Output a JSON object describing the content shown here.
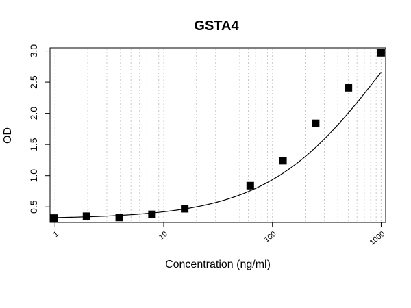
{
  "chart_data": {
    "type": "scatter",
    "title": "GSTA4",
    "xlabel": "Concentration (ng/ml)",
    "ylabel": "OD",
    "x_scale": "log",
    "xlim": [
      0.9,
      1100
    ],
    "ylim": [
      0.25,
      3.05
    ],
    "x_ticks": [
      "1",
      "10",
      "100",
      "1000"
    ],
    "y_ticks": [
      "0.5",
      "1.0",
      "1.5",
      "2.0",
      "2.5",
      "3.0"
    ],
    "grid": "vertical minor log gridlines (dotted)",
    "series": [
      {
        "marker": "filled square",
        "points": [
          {
            "x": 0.98,
            "y": 0.32
          },
          {
            "x": 1.95,
            "y": 0.35
          },
          {
            "x": 3.9,
            "y": 0.33
          },
          {
            "x": 7.8,
            "y": 0.38
          },
          {
            "x": 15.6,
            "y": 0.47
          },
          {
            "x": 62.5,
            "y": 0.84
          },
          {
            "x": 125,
            "y": 1.24
          },
          {
            "x": 250,
            "y": 1.84
          },
          {
            "x": 500,
            "y": 2.41
          },
          {
            "x": 1000,
            "y": 2.97
          }
        ]
      }
    ],
    "fit_curve": {
      "type": "4PL",
      "bottom": 0.31,
      "top": 5.2,
      "ec50": 1100,
      "hill": 0.8
    }
  }
}
